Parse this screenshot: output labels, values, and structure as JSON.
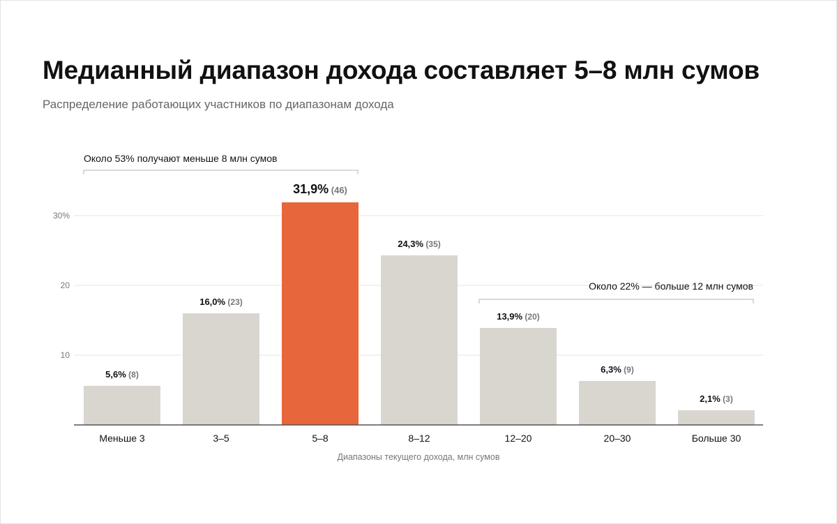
{
  "title": "Медианный диапазон дохода составляет 5–8 млн сумов",
  "subtitle": "Распределение работающих участников по диапазонам дохода",
  "colors": {
    "bar": "#d9d6d0",
    "highlight": "#e8663c",
    "grid": "#e5e5e5",
    "axis": "#555555",
    "text": "#111111",
    "muted": "#777777",
    "bracket": "#b5b5b5"
  },
  "chart_data": {
    "type": "bar",
    "xlabel": "Диапазоны текущего дохода, млн сумов",
    "ylabel": "",
    "ylim": [
      0,
      32
    ],
    "yticks": [
      {
        "value": 10,
        "label": "10"
      },
      {
        "value": 20,
        "label": "20"
      },
      {
        "value": 30,
        "label": "30%"
      }
    ],
    "grid": true,
    "highlight_index": 2,
    "categories": [
      "Меньше 3",
      "3–5",
      "5–8",
      "8–12",
      "12–20",
      "20–30",
      "Больше 30"
    ],
    "values": [
      5.6,
      16.0,
      31.9,
      24.3,
      13.9,
      6.3,
      2.1
    ],
    "value_labels": [
      "5,6%",
      "16,0%",
      "31,9%",
      "24,3%",
      "13,9%",
      "6,3%",
      "2,1%"
    ],
    "counts": [
      "(8)",
      "(23)",
      "(46)",
      "(35)",
      "(20)",
      "(9)",
      "(3)"
    ],
    "annotations": [
      {
        "text": "Около 53% получают меньше 8 млн сумов",
        "from": 0,
        "to": 2,
        "align": "left"
      },
      {
        "text": "Около 22% — больше 12 млн сумов",
        "from": 4,
        "to": 6,
        "align": "right"
      }
    ]
  }
}
